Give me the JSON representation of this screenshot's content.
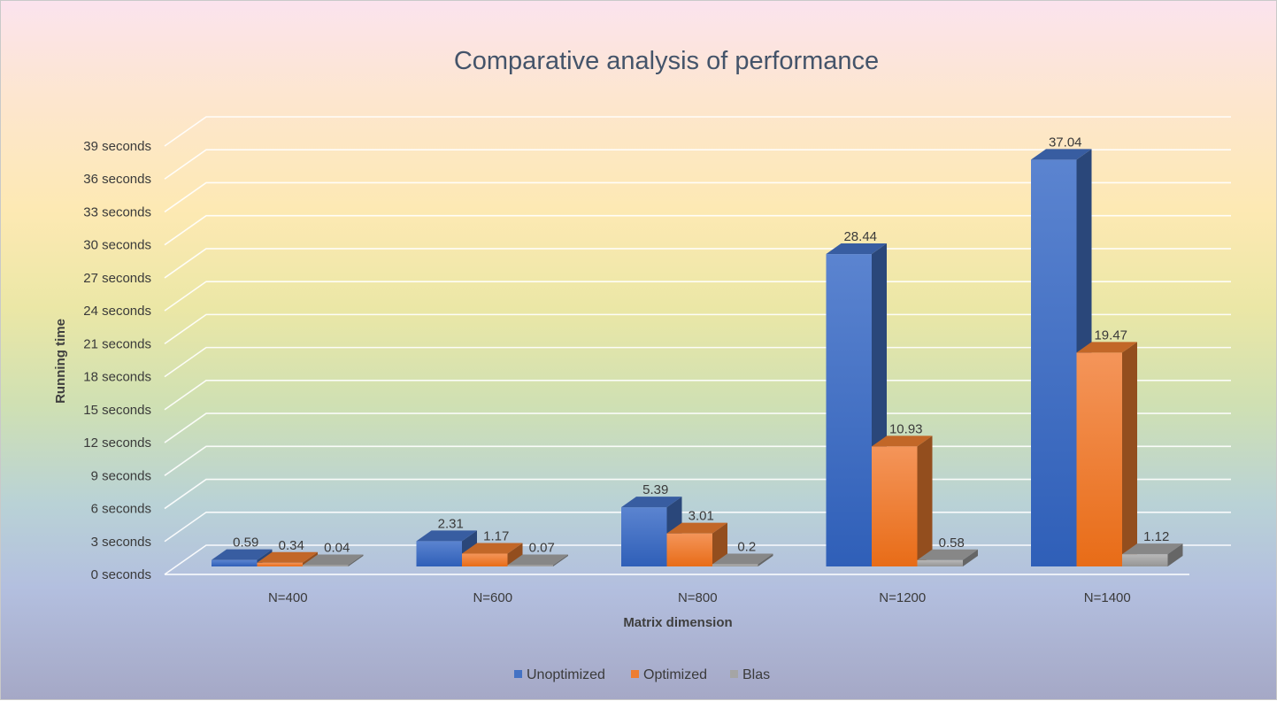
{
  "chart_data": {
    "type": "bar",
    "title": "Comparative analysis of performance",
    "xlabel": "Matrix dimension",
    "ylabel": "Running time",
    "categories": [
      "N=400",
      "N=600",
      "N=800",
      "N=1200",
      "N=1400"
    ],
    "series": [
      {
        "name": "Unoptimized",
        "values": [
          0.59,
          2.31,
          5.39,
          28.44,
          37.04
        ],
        "color": "#4472c4"
      },
      {
        "name": "Optimized",
        "values": [
          0.34,
          1.17,
          3.01,
          10.93,
          19.47
        ],
        "color": "#ed7d31"
      },
      {
        "name": "Blas",
        "values": [
          0.04,
          0.07,
          0.2,
          0.58,
          1.12
        ],
        "color": "#a5a5a5"
      }
    ],
    "y_ticks": [
      "0 seconds",
      "3 seconds",
      "6 seconds",
      "9 seconds",
      "12 seconds",
      "15 seconds",
      "18 seconds",
      "21 seconds",
      "24 seconds",
      "27 seconds",
      "30 seconds",
      "33 seconds",
      "36 seconds",
      "39 seconds"
    ],
    "ylim": [
      0,
      39
    ],
    "grid": true,
    "legend_position": "bottom",
    "style": "3d-clustered-column"
  }
}
